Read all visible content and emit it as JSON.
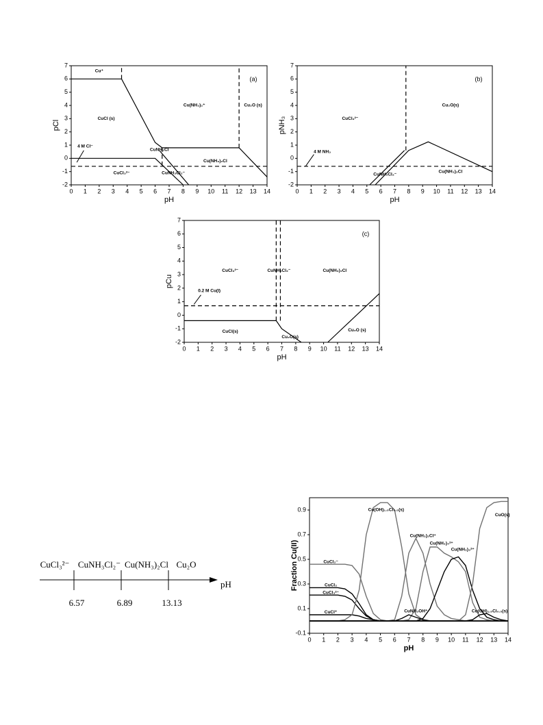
{
  "chart_data": [
    {
      "type": "line",
      "x_label": "pH",
      "y_label": "pCl",
      "panel_label": "(a)",
      "xlim": [
        0,
        14
      ],
      "ylim": [
        -2,
        7
      ],
      "xticks": [
        0,
        1,
        2,
        3,
        4,
        5,
        6,
        7,
        8,
        9,
        10,
        11,
        12,
        13,
        14
      ],
      "yticks": [
        -2,
        -1,
        0,
        1,
        2,
        3,
        4,
        5,
        6,
        7
      ],
      "series": [
        {
          "x": [
            0,
            3.6,
            6,
            6.5,
            12,
            14
          ],
          "values": [
            6,
            6,
            1.2,
            0.8,
            0.8,
            -1.4
          ],
          "color": "#000000",
          "dashed": false
        },
        {
          "x": [
            0,
            6,
            8
          ],
          "values": [
            0,
            0,
            -2
          ],
          "color": "#000000",
          "dashed": false
        },
        {
          "x": [
            6.3,
            8.4
          ],
          "values": [
            0.6,
            -2
          ],
          "color": "#000000",
          "dashed": false
        },
        {
          "x": [
            3.6,
            3.6
          ],
          "values": [
            6,
            7
          ],
          "color": "#000000",
          "dashed": true
        },
        {
          "x": [
            6.5,
            6.5
          ],
          "values": [
            0.8,
            -0.6
          ],
          "color": "#000000",
          "dashed": true
        },
        {
          "x": [
            12,
            12
          ],
          "values": [
            0.8,
            7
          ],
          "color": "#000000",
          "dashed": true
        },
        {
          "x": [
            0,
            14
          ],
          "values": [
            -0.6,
            -0.6
          ],
          "color": "#000000",
          "dashed": true
        }
      ],
      "labels": [
        "Cu⁺",
        "CuCl (s)",
        "Cu(NH₃)₂⁺",
        "Cu₂O (s)",
        "4 M Cl⁻",
        "CuNH₃Cl",
        "Cu(NH₃)₂Cl",
        "CuCl₃²⁻",
        "CuNH₃Cl₂⁻"
      ]
    },
    {
      "type": "line",
      "x_label": "pH",
      "y_label": "pNH₃",
      "panel_label": "(b)",
      "xlim": [
        0,
        14
      ],
      "ylim": [
        -2,
        7
      ],
      "xticks": [
        0,
        1,
        2,
        3,
        4,
        5,
        6,
        7,
        8,
        9,
        10,
        11,
        12,
        13,
        14
      ],
      "yticks": [
        -2,
        -1,
        0,
        1,
        2,
        3,
        4,
        5,
        6,
        7
      ],
      "series": [
        {
          "x": [
            5.2,
            7.7
          ],
          "values": [
            -2,
            0.6
          ],
          "color": "#000000",
          "dashed": false
        },
        {
          "x": [
            5.6,
            8,
            9.4,
            14
          ],
          "values": [
            -2,
            0.6,
            1.25,
            -1
          ],
          "color": "#000000",
          "dashed": false
        },
        {
          "x": [
            7.8,
            7.8
          ],
          "values": [
            0.6,
            7
          ],
          "color": "#000000",
          "dashed": true
        },
        {
          "x": [
            0,
            14
          ],
          "values": [
            -0.6,
            -0.6
          ],
          "color": "#000000",
          "dashed": true
        }
      ],
      "labels": [
        "CuCl₃²⁻",
        "Cu₂O(s)",
        "4 M NH₃",
        "CuNH₃Cl₂⁻",
        "Cu(NH₃)₂Cl"
      ]
    },
    {
      "type": "line",
      "x_label": "pH",
      "y_label": "pCu",
      "panel_label": "(c)",
      "xlim": [
        0,
        14
      ],
      "ylim": [
        -2,
        7
      ],
      "xticks": [
        0,
        1,
        2,
        3,
        4,
        5,
        6,
        7,
        8,
        9,
        10,
        11,
        12,
        13,
        14
      ],
      "yticks": [
        -2,
        -1,
        0,
        1,
        2,
        3,
        4,
        5,
        6,
        7
      ],
      "series": [
        {
          "x": [
            0,
            6.6,
            7,
            8.4
          ],
          "values": [
            -0.4,
            -0.4,
            -1,
            -2
          ],
          "color": "#000000",
          "dashed": false
        },
        {
          "x": [
            10.3,
            14
          ],
          "values": [
            -2,
            1.6
          ],
          "color": "#000000",
          "dashed": false
        },
        {
          "x": [
            6.6,
            6.6
          ],
          "values": [
            -0.4,
            7
          ],
          "color": "#000000",
          "dashed": true
        },
        {
          "x": [
            6.9,
            6.9
          ],
          "values": [
            -0.4,
            7
          ],
          "color": "#000000",
          "dashed": true
        },
        {
          "x": [
            0,
            14
          ],
          "values": [
            0.7,
            0.7
          ],
          "color": "#000000",
          "dashed": true
        }
      ],
      "labels": [
        "CuCl₃²⁻",
        "CuNH₃Cl₂⁻",
        "Cu(NH₃)₂Cl",
        "0.2 M Cu(I)",
        "CuCl(s)",
        "Cu₂O(s)",
        "Cu₂O (s)"
      ]
    },
    {
      "type": "line",
      "x_label": "pH",
      "y_label": "Fraction Cu(II)",
      "xlim": [
        0,
        14
      ],
      "ylim": [
        -0.1,
        1.0
      ],
      "xticks": [
        0,
        1,
        2,
        3,
        4,
        5,
        6,
        7,
        8,
        9,
        10,
        11,
        12,
        13,
        14
      ],
      "yticks": [
        -0.1,
        0.1,
        0.3,
        0.5,
        0.7,
        0.9
      ],
      "x": [
        0,
        1,
        2,
        2.5,
        3,
        3.5,
        4,
        4.5,
        5,
        5.5,
        6,
        6.5,
        7,
        7.5,
        8,
        8.5,
        9,
        9.5,
        10,
        10.5,
        11,
        11.5,
        12,
        12.5,
        13,
        13.5,
        14
      ],
      "series": [
        {
          "name": "CuCl₂⁻",
          "color": "#707070",
          "values": [
            0.46,
            0.46,
            0.46,
            0.46,
            0.45,
            0.38,
            0.2,
            0.06,
            0.01,
            0,
            0,
            0,
            0,
            0,
            0,
            0,
            0,
            0,
            0,
            0,
            0,
            0,
            0,
            0,
            0,
            0,
            0
          ]
        },
        {
          "name": "CuCl₂",
          "color": "#000000",
          "values": [
            0.27,
            0.27,
            0.27,
            0.26,
            0.22,
            0.14,
            0.05,
            0.01,
            0,
            0,
            0,
            0,
            0,
            0,
            0,
            0,
            0,
            0,
            0,
            0,
            0,
            0,
            0,
            0,
            0,
            0,
            0
          ]
        },
        {
          "name": "CuCl₃²⁻",
          "color": "#000000",
          "values": [
            0.21,
            0.21,
            0.21,
            0.2,
            0.17,
            0.1,
            0.04,
            0.01,
            0,
            0,
            0,
            0,
            0,
            0,
            0,
            0,
            0,
            0,
            0,
            0,
            0,
            0,
            0,
            0,
            0,
            0,
            0
          ]
        },
        {
          "name": "CuCl⁺",
          "color": "#000000",
          "values": [
            0.05,
            0.05,
            0.05,
            0.05,
            0.05,
            0.04,
            0.02,
            0.01,
            0,
            0,
            0,
            0,
            0,
            0,
            0,
            0,
            0,
            0,
            0,
            0,
            0,
            0,
            0,
            0,
            0,
            0,
            0
          ]
        },
        {
          "name": "Cu(OH)₁.₅Cl₀.₅(s)",
          "color": "#707070",
          "values": [
            0,
            0,
            0,
            0.01,
            0.05,
            0.25,
            0.7,
            0.92,
            0.96,
            0.96,
            0.9,
            0.6,
            0.22,
            0.05,
            0.01,
            0,
            0,
            0,
            0,
            0,
            0,
            0,
            0,
            0,
            0,
            0,
            0
          ]
        },
        {
          "name": "Cu(NH₃)₂Cl⁺",
          "color": "#707070",
          "values": [
            0,
            0,
            0,
            0,
            0,
            0,
            0,
            0,
            0,
            0,
            0.01,
            0.2,
            0.55,
            0.67,
            0.55,
            0.3,
            0.12,
            0.05,
            0.02,
            0.01,
            0,
            0,
            0,
            0,
            0,
            0,
            0
          ]
        },
        {
          "name": "Cu(NH₃)₄²⁺",
          "color": "#707070",
          "values": [
            0,
            0,
            0,
            0,
            0,
            0,
            0,
            0,
            0,
            0,
            0,
            0,
            0.01,
            0.1,
            0.4,
            0.6,
            0.6,
            0.55,
            0.52,
            0.48,
            0.4,
            0.15,
            0.03,
            0.01,
            0,
            0,
            0
          ]
        },
        {
          "name": "Cu(NH₃)₃²⁺",
          "color": "#000000",
          "values": [
            0,
            0,
            0,
            0,
            0,
            0,
            0,
            0,
            0,
            0,
            0,
            0,
            0,
            0,
            0.02,
            0.1,
            0.25,
            0.4,
            0.5,
            0.52,
            0.45,
            0.25,
            0.1,
            0.03,
            0.01,
            0,
            0
          ]
        },
        {
          "name": "CuO(s)",
          "color": "#707070",
          "values": [
            0,
            0,
            0,
            0,
            0,
            0,
            0,
            0,
            0,
            0,
            0,
            0,
            0,
            0,
            0,
            0,
            0,
            0,
            0,
            0,
            0.05,
            0.3,
            0.75,
            0.92,
            0.96,
            0.97,
            0.97
          ]
        },
        {
          "name": "CuNH₃OH⁺",
          "color": "#000000",
          "values": [
            0,
            0,
            0,
            0,
            0,
            0,
            0,
            0,
            0,
            0,
            0,
            0.02,
            0.05,
            0.03,
            0.01,
            0,
            0,
            0,
            0,
            0,
            0,
            0,
            0,
            0,
            0,
            0,
            0
          ]
        },
        {
          "name": "Cu(OH)₁.₅Cl₀.₅(s)",
          "color": "#000000",
          "values": [
            0,
            0,
            0,
            0,
            0,
            0,
            0,
            0,
            0,
            0,
            0,
            0,
            0,
            0,
            0,
            0,
            0,
            0,
            0,
            0,
            0,
            0.01,
            0.05,
            0.06,
            0.03,
            0.01,
            0
          ]
        }
      ]
    }
  ],
  "scheme": {
    "species": [
      "CuCl₃²⁻",
      "CuNH₃Cl₂⁻",
      "Cu(NH₃)₂Cl",
      "Cu₂O"
    ],
    "axis_label": "pH",
    "transitions": [
      6.57,
      6.89,
      13.13
    ]
  }
}
